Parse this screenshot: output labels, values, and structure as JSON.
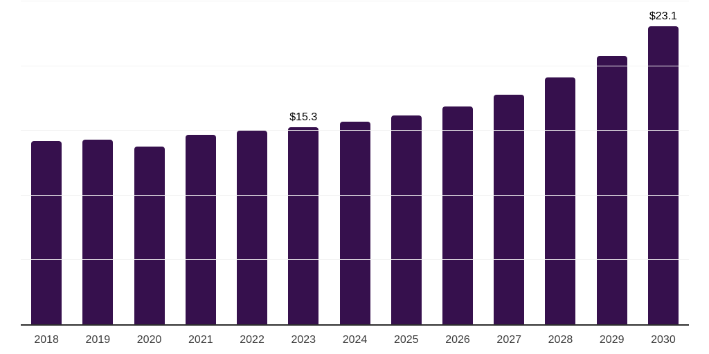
{
  "chart_data": {
    "type": "bar",
    "title": "",
    "xlabel": "",
    "ylabel": "",
    "categories": [
      "2018",
      "2019",
      "2020",
      "2021",
      "2022",
      "2023",
      "2024",
      "2025",
      "2026",
      "2027",
      "2028",
      "2029",
      "2030"
    ],
    "values": [
      14.2,
      14.3,
      13.8,
      14.7,
      15.0,
      15.3,
      15.7,
      16.2,
      16.9,
      17.8,
      19.1,
      20.8,
      23.1
    ],
    "point_labels": [
      "",
      "",
      "",
      "",
      "",
      "$15.3",
      "",
      "",
      "",
      "",
      "",
      "",
      "$23.1"
    ],
    "ylim": [
      0,
      25
    ],
    "gridline_step": 5,
    "grid": true,
    "legend": false,
    "y_tick_labels_shown": false,
    "colors": {
      "bar": "#36104D",
      "gridline": "#F2F2F2",
      "axis_line": "#2E2E2E",
      "tick_label": "#3C3C3C",
      "value_label": "#000000",
      "background": "#FFFFFF"
    }
  }
}
